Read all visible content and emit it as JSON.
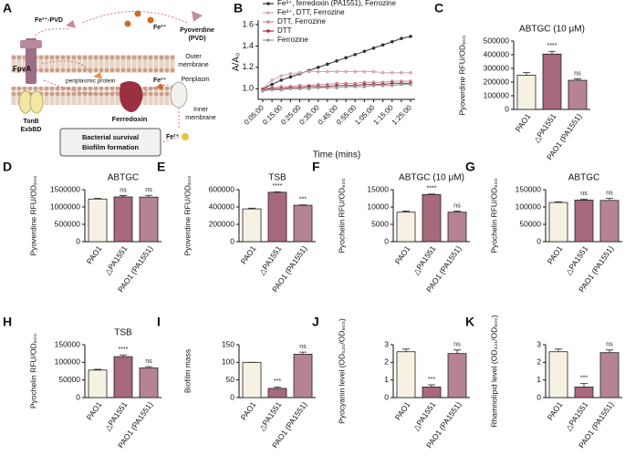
{
  "diagram": {
    "panel": "A",
    "fe_pvd": "Fe³⁺-PVD",
    "fe3_out": "Fe³⁺",
    "pyoverdine": [
      "Pyoverdine",
      "(PVD)"
    ],
    "outer_membrane": [
      "Outer",
      "membrane"
    ],
    "periplasm": "Periplasm",
    "fpva": "FpvA",
    "periplasmic_protein": "periplasmic protein",
    "fe3_in": "Fe³⁺",
    "tonb": [
      "TonB",
      "ExbBD"
    ],
    "ferredoxin": "Ferredoxin",
    "inner_membrane": [
      "Inner",
      "membrane"
    ],
    "fe2": "Fe²⁺",
    "outcome": [
      "Bacterial survival",
      "Biofilm formation"
    ]
  },
  "chart_data": [
    {
      "panel": "B",
      "type": "line",
      "x_label": "Time (mins)",
      "y_label": "A/A₀",
      "categories": [
        "0:05:00",
        null,
        "0:15:00",
        null,
        "0:25:00",
        null,
        "0:35:00",
        null,
        "0:45:00",
        null,
        "0:55:00",
        null,
        "1:05:00",
        null,
        "1:15:00",
        null,
        "1:25:00"
      ],
      "ylim": [
        0.9,
        1.6
      ],
      "yticks": [
        {
          "value": 1,
          "label": "1.0"
        },
        {
          "value": 1.2,
          "label": "1.2"
        },
        {
          "value": 1.4,
          "label": "1.4"
        },
        {
          "value": 1.6,
          "label": "1.6"
        }
      ],
      "series": [
        {
          "name": "Fe³⁺, ferredoxin (PA1551), Ferrozine",
          "color": "#333333",
          "values": [
            1.0,
            1.04,
            1.08,
            1.11,
            1.14,
            1.17,
            1.2,
            1.23,
            1.26,
            1.29,
            1.32,
            1.35,
            1.38,
            1.41,
            1.44,
            1.47,
            1.49
          ]
        },
        {
          "name": "Fe³⁺, DTT, Ferrozine",
          "color": "#dba3b3",
          "values": [
            1.0,
            1.08,
            1.12,
            1.14,
            1.15,
            1.16,
            1.16,
            1.16,
            1.16,
            1.16,
            1.16,
            1.16,
            1.16,
            1.15,
            1.15,
            1.15,
            1.15
          ]
        },
        {
          "name": "DTT, Ferrozine",
          "color": "#c98a9a",
          "values": [
            1.0,
            1.01,
            1.02,
            1.02,
            1.03,
            1.03,
            1.04,
            1.04,
            1.05,
            1.05,
            1.05,
            1.06,
            1.06,
            1.06,
            1.07,
            1.07,
            1.07
          ]
        },
        {
          "name": "DTT",
          "color": "#a0303c",
          "values": [
            0.99,
            1.0,
            1.0,
            1.01,
            1.01,
            1.02,
            1.02,
            1.02,
            1.03,
            1.03,
            1.03,
            1.04,
            1.04,
            1.04,
            1.05,
            1.05,
            1.05
          ]
        },
        {
          "name": "Ferrozine",
          "color": "#999999",
          "values": [
            0.98,
            0.99,
            0.99,
            1.0,
            1.0,
            1.0,
            1.01,
            1.01,
            1.01,
            1.02,
            1.02,
            1.02,
            1.03,
            1.03,
            1.03,
            1.04,
            1.04
          ]
        }
      ]
    },
    {
      "panel": "C",
      "type": "bar",
      "title": "ABTGC (10 μM)",
      "y_label": "Pyoverdine RFU/OD₆₀₀",
      "categories": [
        "PAO1",
        "△PA1551",
        "PAO1 (PA1551)"
      ],
      "values": [
        250000,
        405000,
        213000
      ],
      "errors": [
        20000,
        20000,
        10000
      ],
      "significance": [
        null,
        "****",
        "ns"
      ],
      "colors": [
        "#f6f1e3",
        "#a7697c",
        "#b58391"
      ],
      "ylim": [
        0,
        500000
      ],
      "yticks": [
        0,
        100000,
        200000,
        300000,
        400000,
        500000
      ]
    },
    {
      "panel": "D",
      "type": "bar",
      "title": "ABTGC",
      "y_label": "Pyoverdine RFU/OD₆₀₀",
      "categories": [
        "PAO1",
        "△PA1551",
        "PAO1 (PA1551)"
      ],
      "values": [
        1230000,
        1290000,
        1285000
      ],
      "errors": [
        20000,
        40000,
        50000
      ],
      "significance": [
        null,
        "ns",
        "ns"
      ],
      "colors": [
        "#f6f1e3",
        "#a7697c",
        "#b58391"
      ],
      "ylim": [
        0,
        1500000
      ],
      "yticks": [
        0,
        500000,
        1000000,
        1500000
      ]
    },
    {
      "panel": "E",
      "type": "bar",
      "title": "TSB",
      "y_label": "Pyoverdine RFU/OD₆₀₀",
      "categories": [
        "PAO1",
        "△PA1551",
        "PAO1 (PA1551)"
      ],
      "values": [
        378000,
        570000,
        420000
      ],
      "errors": [
        8000,
        5000,
        5000
      ],
      "significance": [
        null,
        "****",
        "***"
      ],
      "colors": [
        "#f6f1e3",
        "#a7697c",
        "#b58391"
      ],
      "ylim": [
        0,
        600000
      ],
      "yticks": [
        0,
        200000,
        400000,
        600000
      ]
    },
    {
      "panel": "F",
      "type": "bar",
      "title": "ABTGC (10 μM)",
      "y_label": "Pyochelin RFU/OD₆₀₀",
      "categories": [
        "PAO1",
        "△PA1551",
        "PAO1 (PA1551)"
      ],
      "values": [
        8500,
        13600,
        8500
      ],
      "errors": [
        300,
        150,
        300
      ],
      "significance": [
        null,
        "****",
        "ns"
      ],
      "colors": [
        "#f6f1e3",
        "#a7697c",
        "#b58391"
      ],
      "ylim": [
        0,
        15000
      ],
      "yticks": [
        0,
        5000,
        10000,
        15000
      ]
    },
    {
      "panel": "G",
      "type": "bar",
      "title": "ABTGC",
      "y_label": "Pyochelin RFU/OD₆₀₀",
      "categories": [
        "PAO1",
        "△PA1551",
        "PAO1 (PA1551)"
      ],
      "values": [
        113000,
        120000,
        119000
      ],
      "errors": [
        2000,
        3000,
        6000
      ],
      "significance": [
        null,
        "ns",
        "ns"
      ],
      "colors": [
        "#f6f1e3",
        "#a7697c",
        "#b58391"
      ],
      "ylim": [
        0,
        150000
      ],
      "yticks": [
        0,
        50000,
        100000,
        150000
      ]
    },
    {
      "panel": "H",
      "type": "bar",
      "title": "TSB",
      "y_label": "Pyochelin RFU/OD₆₀₀",
      "categories": [
        "PAO1",
        "△PA1551",
        "PAO1 (PA1551)"
      ],
      "values": [
        78000,
        116000,
        84000
      ],
      "errors": [
        2000,
        5000,
        4000
      ],
      "significance": [
        null,
        "****",
        "ns"
      ],
      "colors": [
        "#f6f1e3",
        "#a7697c",
        "#b58391"
      ],
      "ylim": [
        0,
        150000
      ],
      "yticks": [
        0,
        50000,
        100000,
        150000
      ]
    },
    {
      "panel": "I",
      "type": "bar",
      "y_label": "Biofilm mass",
      "categories": [
        "PAO1",
        "△PA1551",
        "PAO1 (PA1551)"
      ],
      "values": [
        100,
        26,
        123
      ],
      "errors": [
        0,
        4,
        6
      ],
      "significance": [
        null,
        "***",
        "ns"
      ],
      "colors": [
        "#f6f1e3",
        "#a7697c",
        "#b58391"
      ],
      "ylim": [
        0,
        150
      ],
      "yticks": [
        0,
        50,
        100,
        150
      ]
    },
    {
      "panel": "J",
      "type": "bar",
      "y_label": "Pyocyanin level (OD₅₂₀/OD₆₀₀)",
      "categories": [
        "PAO1",
        "△PA1551",
        "PAO1 (PA1551)"
      ],
      "values": [
        2.6,
        0.6,
        2.5
      ],
      "errors": [
        0.15,
        0.12,
        0.2
      ],
      "significance": [
        null,
        "***",
        "ns"
      ],
      "colors": [
        "#f6f1e3",
        "#a7697c",
        "#b58391"
      ],
      "ylim": [
        0,
        3
      ],
      "yticks": [
        0,
        1,
        2,
        3
      ]
    },
    {
      "panel": "K",
      "type": "bar",
      "y_label": "Rhamnolipid level (OD₄₂₁/OD₆₀₀)",
      "categories": [
        "PAO1",
        "△PA1551",
        "PAO1 (PA1551)"
      ],
      "values": [
        2.6,
        0.6,
        2.55
      ],
      "errors": [
        0.15,
        0.2,
        0.15
      ],
      "significance": [
        null,
        "***",
        "ns"
      ],
      "colors": [
        "#f6f1e3",
        "#a7697c",
        "#b58391"
      ],
      "ylim": [
        0,
        3
      ],
      "yticks": [
        0,
        1,
        2,
        3
      ]
    }
  ]
}
